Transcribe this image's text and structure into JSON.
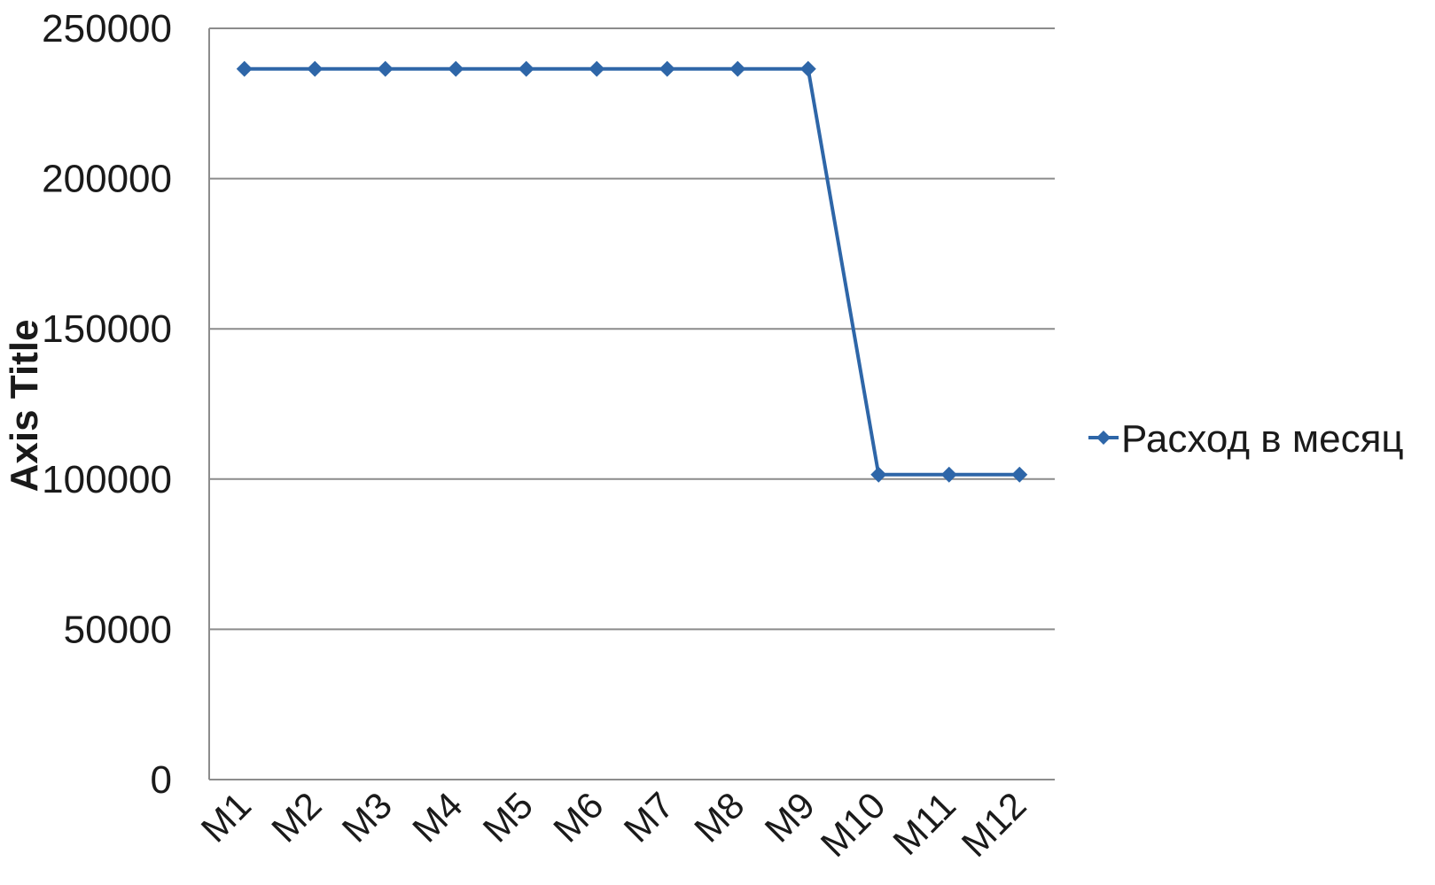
{
  "chart_data": {
    "type": "line",
    "categories": [
      "M1",
      "M2",
      "M3",
      "M4",
      "M5",
      "M6",
      "M7",
      "M8",
      "M9",
      "M10",
      "M11",
      "M12"
    ],
    "series": [
      {
        "name": "Расход в месяц",
        "values": [
          236500,
          236500,
          236500,
          236500,
          236500,
          236500,
          236500,
          236500,
          236500,
          101500,
          101500,
          101500
        ],
        "color": "#2e66a8"
      }
    ],
    "yticks": [
      "0",
      "50000",
      "100000",
      "150000",
      "200000",
      "250000"
    ],
    "ylabel": "Axis Title",
    "ylim": [
      0,
      250000
    ],
    "grid": true,
    "legend_position": "right",
    "marker": "diamond"
  }
}
